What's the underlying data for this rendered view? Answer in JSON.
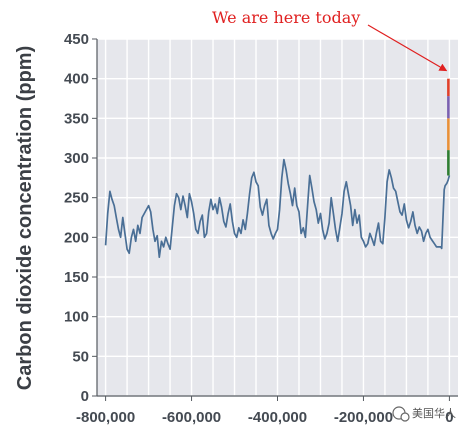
{
  "chart_data": {
    "type": "line",
    "title": "",
    "xlabel": "",
    "ylabel": "Carbon dioxide concentration (ppm)",
    "xlim": [
      -820000,
      20000
    ],
    "ylim": [
      0,
      450
    ],
    "x_ticks": [
      -800000,
      -600000,
      -400000,
      -200000,
      0
    ],
    "x_tick_labels": [
      "-800,000",
      "-600,000",
      "-400,000",
      "-200,000",
      "0"
    ],
    "y_ticks": [
      0,
      50,
      100,
      150,
      200,
      250,
      300,
      350,
      400,
      450
    ],
    "grid": true,
    "series": [
      {
        "color": "#4a6f96",
        "points": [
          [
            -800000,
            190
          ],
          [
            -795000,
            230
          ],
          [
            -790000,
            258
          ],
          [
            -785000,
            248
          ],
          [
            -780000,
            240
          ],
          [
            -775000,
            225
          ],
          [
            -770000,
            210
          ],
          [
            -765000,
            200
          ],
          [
            -760000,
            225
          ],
          [
            -755000,
            205
          ],
          [
            -750000,
            185
          ],
          [
            -745000,
            180
          ],
          [
            -740000,
            200
          ],
          [
            -735000,
            210
          ],
          [
            -730000,
            195
          ],
          [
            -725000,
            215
          ],
          [
            -720000,
            205
          ],
          [
            -715000,
            225
          ],
          [
            -710000,
            230
          ],
          [
            -705000,
            235
          ],
          [
            -700000,
            240
          ],
          [
            -695000,
            232
          ],
          [
            -690000,
            210
          ],
          [
            -685000,
            195
          ],
          [
            -680000,
            202
          ],
          [
            -675000,
            175
          ],
          [
            -670000,
            195
          ],
          [
            -665000,
            188
          ],
          [
            -660000,
            200
          ],
          [
            -655000,
            192
          ],
          [
            -650000,
            185
          ],
          [
            -645000,
            212
          ],
          [
            -640000,
            240
          ],
          [
            -635000,
            255
          ],
          [
            -630000,
            250
          ],
          [
            -625000,
            235
          ],
          [
            -620000,
            252
          ],
          [
            -615000,
            240
          ],
          [
            -610000,
            225
          ],
          [
            -605000,
            255
          ],
          [
            -600000,
            245
          ],
          [
            -595000,
            230
          ],
          [
            -590000,
            210
          ],
          [
            -585000,
            205
          ],
          [
            -580000,
            220
          ],
          [
            -575000,
            228
          ],
          [
            -570000,
            200
          ],
          [
            -565000,
            205
          ],
          [
            -560000,
            232
          ],
          [
            -555000,
            248
          ],
          [
            -550000,
            235
          ],
          [
            -545000,
            242
          ],
          [
            -540000,
            230
          ],
          [
            -535000,
            250
          ],
          [
            -530000,
            238
          ],
          [
            -525000,
            220
          ],
          [
            -520000,
            213
          ],
          [
            -515000,
            230
          ],
          [
            -510000,
            242
          ],
          [
            -505000,
            220
          ],
          [
            -500000,
            205
          ],
          [
            -495000,
            200
          ],
          [
            -490000,
            212
          ],
          [
            -485000,
            205
          ],
          [
            -480000,
            222
          ],
          [
            -475000,
            210
          ],
          [
            -470000,
            230
          ],
          [
            -465000,
            255
          ],
          [
            -460000,
            275
          ],
          [
            -455000,
            282
          ],
          [
            -450000,
            270
          ],
          [
            -445000,
            265
          ],
          [
            -440000,
            238
          ],
          [
            -435000,
            228
          ],
          [
            -430000,
            240
          ],
          [
            -425000,
            248
          ],
          [
            -420000,
            215
          ],
          [
            -415000,
            205
          ],
          [
            -410000,
            198
          ],
          [
            -405000,
            205
          ],
          [
            -400000,
            210
          ],
          [
            -395000,
            235
          ],
          [
            -390000,
            275
          ],
          [
            -385000,
            298
          ],
          [
            -380000,
            285
          ],
          [
            -375000,
            268
          ],
          [
            -370000,
            255
          ],
          [
            -365000,
            240
          ],
          [
            -360000,
            262
          ],
          [
            -355000,
            240
          ],
          [
            -350000,
            232
          ],
          [
            -345000,
            205
          ],
          [
            -340000,
            212
          ],
          [
            -335000,
            200
          ],
          [
            -330000,
            240
          ],
          [
            -325000,
            278
          ],
          [
            -320000,
            262
          ],
          [
            -315000,
            245
          ],
          [
            -310000,
            235
          ],
          [
            -305000,
            218
          ],
          [
            -300000,
            230
          ],
          [
            -295000,
            210
          ],
          [
            -290000,
            198
          ],
          [
            -285000,
            205
          ],
          [
            -280000,
            218
          ],
          [
            -275000,
            250
          ],
          [
            -270000,
            230
          ],
          [
            -265000,
            210
          ],
          [
            -260000,
            195
          ],
          [
            -255000,
            212
          ],
          [
            -250000,
            230
          ],
          [
            -245000,
            258
          ],
          [
            -240000,
            270
          ],
          [
            -235000,
            255
          ],
          [
            -230000,
            240
          ],
          [
            -225000,
            215
          ],
          [
            -220000,
            235
          ],
          [
            -215000,
            218
          ],
          [
            -210000,
            228
          ],
          [
            -205000,
            200
          ],
          [
            -200000,
            195
          ],
          [
            -195000,
            188
          ],
          [
            -190000,
            192
          ],
          [
            -185000,
            205
          ],
          [
            -180000,
            198
          ],
          [
            -175000,
            190
          ],
          [
            -170000,
            205
          ],
          [
            -165000,
            218
          ],
          [
            -160000,
            195
          ],
          [
            -155000,
            192
          ],
          [
            -150000,
            225
          ],
          [
            -145000,
            270
          ],
          [
            -140000,
            285
          ],
          [
            -135000,
            275
          ],
          [
            -130000,
            262
          ],
          [
            -125000,
            258
          ],
          [
            -120000,
            245
          ],
          [
            -115000,
            232
          ],
          [
            -110000,
            228
          ],
          [
            -105000,
            242
          ],
          [
            -100000,
            222
          ],
          [
            -95000,
            212
          ],
          [
            -90000,
            220
          ],
          [
            -85000,
            232
          ],
          [
            -80000,
            215
          ],
          [
            -75000,
            205
          ],
          [
            -70000,
            213
          ],
          [
            -65000,
            208
          ],
          [
            -60000,
            195
          ],
          [
            -55000,
            205
          ],
          [
            -50000,
            210
          ],
          [
            -45000,
            200
          ],
          [
            -40000,
            196
          ],
          [
            -35000,
            192
          ],
          [
            -30000,
            188
          ],
          [
            -25000,
            188
          ],
          [
            -20000,
            188
          ],
          [
            -18000,
            186
          ],
          [
            -15000,
            225
          ],
          [
            -12000,
            260
          ],
          [
            -10000,
            265
          ],
          [
            -6000,
            268
          ],
          [
            -3000,
            272
          ],
          [
            0,
            278
          ]
        ]
      },
      {
        "color": "#2e7d32",
        "points": [
          [
            0,
            278
          ],
          [
            0,
            285
          ],
          [
            0,
            292
          ],
          [
            0,
            300
          ],
          [
            0,
            310
          ]
        ]
      },
      {
        "color": "#e89038",
        "points": [
          [
            0,
            310
          ],
          [
            0,
            325
          ],
          [
            0,
            340
          ],
          [
            0,
            350
          ]
        ]
      },
      {
        "color": "#7a60b0",
        "points": [
          [
            0,
            350
          ],
          [
            0,
            365
          ],
          [
            0,
            378
          ]
        ]
      },
      {
        "color": "#e0402a",
        "points": [
          [
            0,
            378
          ],
          [
            0,
            390
          ],
          [
            0,
            400
          ]
        ]
      }
    ],
    "annotations": [
      {
        "text": "We are here today",
        "color": "#e02020",
        "target": [
          0,
          400
        ]
      }
    ],
    "watermark": "美国华人"
  }
}
